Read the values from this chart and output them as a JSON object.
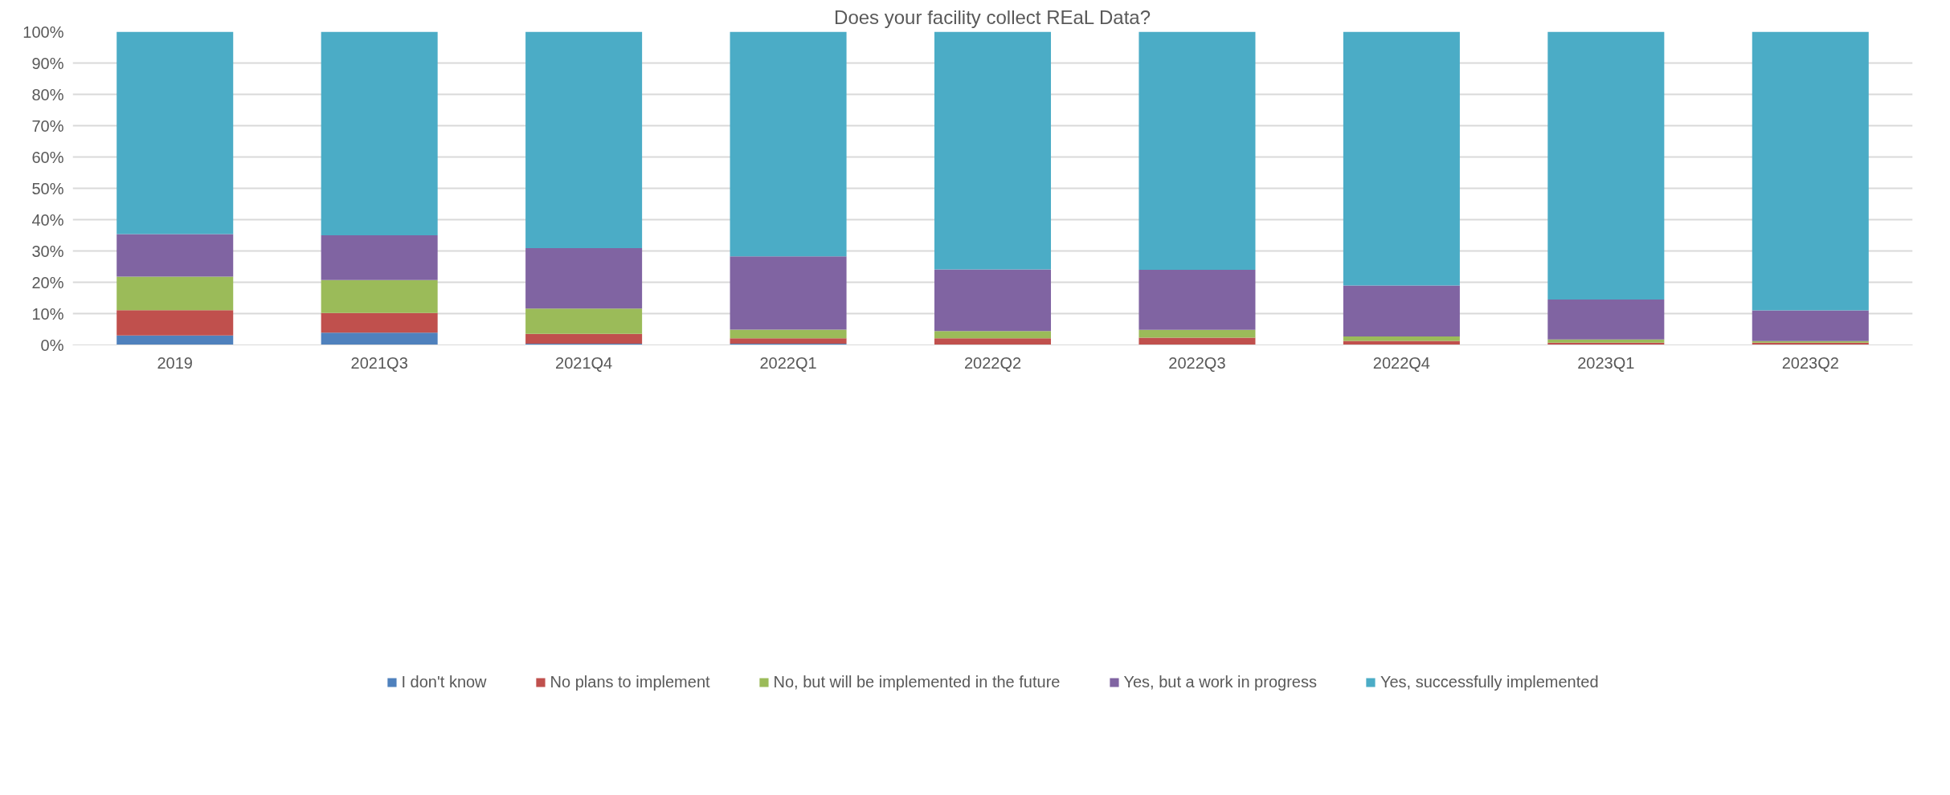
{
  "chart_data": {
    "type": "bar",
    "stacked": true,
    "title": "Does your facility collect REaL Data?",
    "categories": [
      "2019",
      "2021Q3",
      "2021Q4",
      "2022Q1",
      "2022Q2",
      "2022Q3",
      "2022Q4",
      "2023Q1",
      "2023Q2"
    ],
    "series": [
      {
        "name": "I don't know",
        "color": "#4f81bd",
        "values": [
          3.0,
          3.9,
          0.4,
          0.4,
          0,
          0,
          0,
          0,
          0
        ]
      },
      {
        "name": "No plans to implement",
        "color": "#c0504d",
        "values": [
          8.1,
          6.3,
          3.1,
          1.7,
          2.1,
          2.3,
          1.3,
          0.7,
          0.7
        ]
      },
      {
        "name": "No, but will be implemented in the future",
        "color": "#9bbb59",
        "values": [
          10.7,
          10.5,
          8.1,
          2.8,
          2.3,
          2.5,
          1.4,
          1.0,
          0.5
        ]
      },
      {
        "name": "Yes, but a work in progress",
        "color": "#8064a2",
        "values": [
          13.6,
          14.3,
          19.3,
          23.4,
          19.7,
          19.2,
          16.3,
          12.8,
          9.8
        ]
      },
      {
        "name": "Yes, successfully implemented",
        "color": "#4bacc6",
        "values": [
          64.6,
          65.0,
          69.1,
          71.7,
          75.9,
          76.0,
          81.0,
          85.5,
          89.0
        ]
      }
    ],
    "ylim": [
      0,
      100
    ],
    "yticks": [
      {
        "value": 0,
        "label": "0%"
      },
      {
        "value": 10,
        "label": "10%"
      },
      {
        "value": 20,
        "label": "20%"
      },
      {
        "value": 30,
        "label": "30%"
      },
      {
        "value": 40,
        "label": "40%"
      },
      {
        "value": 50,
        "label": "50%"
      },
      {
        "value": 60,
        "label": "60%"
      },
      {
        "value": 70,
        "label": "70%"
      },
      {
        "value": 80,
        "label": "80%"
      },
      {
        "value": 90,
        "label": "90%"
      },
      {
        "value": 100,
        "label": "100%"
      }
    ],
    "grid": "y",
    "legend": "bottom"
  }
}
